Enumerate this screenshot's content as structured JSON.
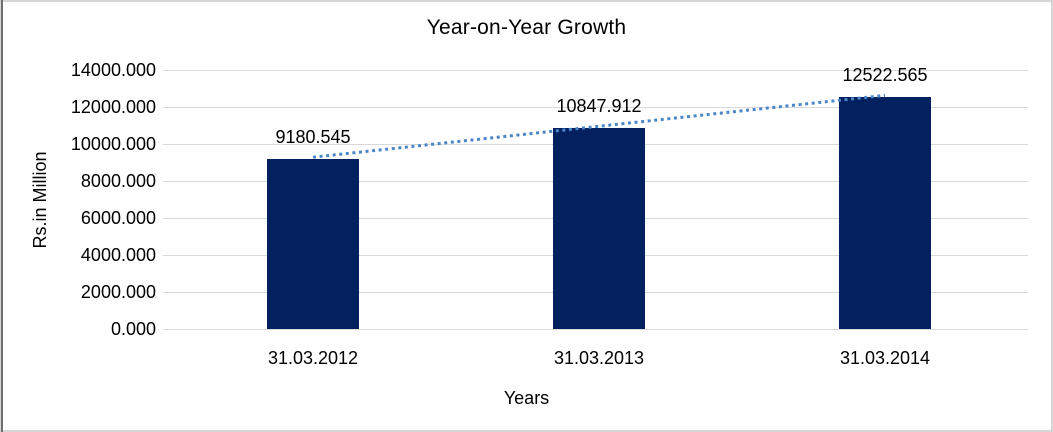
{
  "chart_data": {
    "type": "bar",
    "title": "Year-on-Year Growth",
    "xlabel": "Years",
    "ylabel": "Rs.in Million",
    "categories": [
      "31.03.2012",
      "31.03.2013",
      "31.03.2014"
    ],
    "values": [
      9180.545,
      10847.912,
      12522.565
    ],
    "data_labels": [
      "9180.545",
      "10847.912",
      "12522.565"
    ],
    "ylim": [
      0,
      14000
    ],
    "y_tick_step": 2000,
    "y_tick_labels": [
      "0.000",
      "2000.000",
      "4000.000",
      "6000.000",
      "8000.000",
      "10000.000",
      "12000.000",
      "14000.000"
    ],
    "grid": "horizontal",
    "legend": "none",
    "trendline": {
      "type": "linear",
      "style": "dotted",
      "color": "#4a86c8"
    },
    "colors": {
      "bar": "#02215e",
      "gridline": "#d9d9d9",
      "text": "#000000",
      "background": "#ffffff",
      "frame_border": "#d6d6d6",
      "frame_left_accent": "#6e6e6e"
    }
  }
}
